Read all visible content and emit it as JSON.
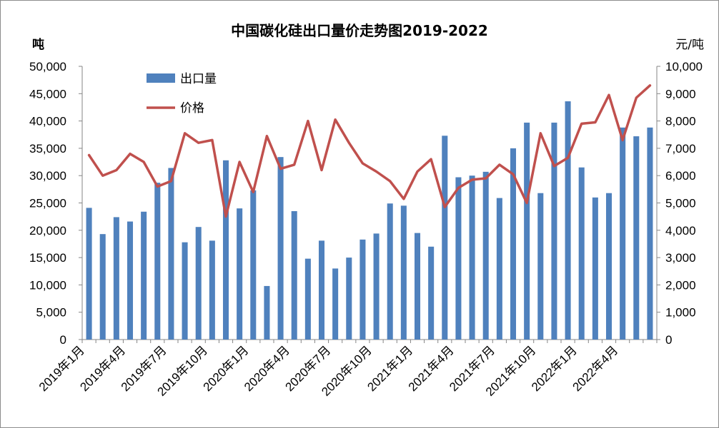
{
  "chart_data": {
    "type": "bar+line",
    "title": "中国碳化硅出口量价走势图2019-2022",
    "left_unit": "吨",
    "right_unit": "元/吨",
    "legend": {
      "placement": "top-left",
      "bar_label": "出口量",
      "line_label": "价格"
    },
    "colors": {
      "bars": "#4f81bd",
      "line": "#c0504d",
      "axis": "#868686"
    },
    "left_axis": {
      "min": 0,
      "max": 50000,
      "step": 5000,
      "tick_labels": [
        "0",
        "5,000",
        "10,000",
        "15,000",
        "20,000",
        "25,000",
        "30,000",
        "35,000",
        "40,000",
        "45,000",
        "50,000"
      ]
    },
    "right_axis": {
      "min": 0,
      "max": 10000,
      "step": 1000,
      "tick_labels": [
        "0",
        "1,000",
        "2,000",
        "3,000",
        "4,000",
        "5,000",
        "6,000",
        "7,000",
        "8,000",
        "9,000",
        "10,000"
      ]
    },
    "x_tick_labels": [
      {
        "index": 0,
        "label": "2019年1月"
      },
      {
        "index": 3,
        "label": "2019年4月"
      },
      {
        "index": 6,
        "label": "2019年7月"
      },
      {
        "index": 9,
        "label": "2019年10月"
      },
      {
        "index": 12,
        "label": "2020年1月"
      },
      {
        "index": 15,
        "label": "2020年4月"
      },
      {
        "index": 18,
        "label": "2020年7月"
      },
      {
        "index": 21,
        "label": "2020年10月"
      },
      {
        "index": 24,
        "label": "2021年1月"
      },
      {
        "index": 27,
        "label": "2021年4月"
      },
      {
        "index": 30,
        "label": "2021年7月"
      },
      {
        "index": 33,
        "label": "2021年10月"
      },
      {
        "index": 36,
        "label": "2022年1月"
      },
      {
        "index": 39,
        "label": "2022年4月"
      }
    ],
    "months": [
      "2019-01",
      "2019-02",
      "2019-03",
      "2019-04",
      "2019-05",
      "2019-06",
      "2019-07",
      "2019-08",
      "2019-09",
      "2019-10",
      "2019-11",
      "2019-12",
      "2020-01",
      "2020-02",
      "2020-03",
      "2020-04",
      "2020-05",
      "2020-06",
      "2020-07",
      "2020-08",
      "2020-09",
      "2020-10",
      "2020-11",
      "2020-12",
      "2021-01",
      "2021-02",
      "2021-03",
      "2021-04",
      "2021-05",
      "2021-06",
      "2021-07",
      "2021-08",
      "2021-09",
      "2021-10",
      "2021-11",
      "2021-12",
      "2022-01",
      "2022-02",
      "2022-03",
      "2022-04",
      "2022-05",
      "2022-06"
    ],
    "series": [
      {
        "name": "出口量",
        "type": "bar",
        "axis": "left",
        "values": [
          24100,
          19300,
          22400,
          21600,
          23400,
          28700,
          31400,
          17800,
          20600,
          18100,
          32800,
          24000,
          27300,
          9800,
          33400,
          23500,
          14800,
          18100,
          13000,
          15000,
          18300,
          19400,
          24900,
          24500,
          19500,
          17000,
          37300,
          29700,
          30000,
          30700,
          25900,
          35000,
          39700,
          26800,
          39700,
          43600,
          31500,
          26000,
          26800,
          38800,
          37200,
          38800
        ]
      },
      {
        "name": "价格",
        "type": "line",
        "axis": "right",
        "values": [
          6750,
          6000,
          6200,
          6800,
          6500,
          5600,
          5800,
          7550,
          7200,
          7300,
          4500,
          6500,
          5400,
          7450,
          6250,
          6400,
          8000,
          6200,
          8050,
          7200,
          6450,
          6150,
          5800,
          5150,
          6150,
          6600,
          4850,
          5550,
          5850,
          5900,
          6400,
          6050,
          5000,
          7550,
          6350,
          6650,
          7900,
          7950,
          8950,
          7300,
          8850,
          9300
        ]
      }
    ]
  }
}
